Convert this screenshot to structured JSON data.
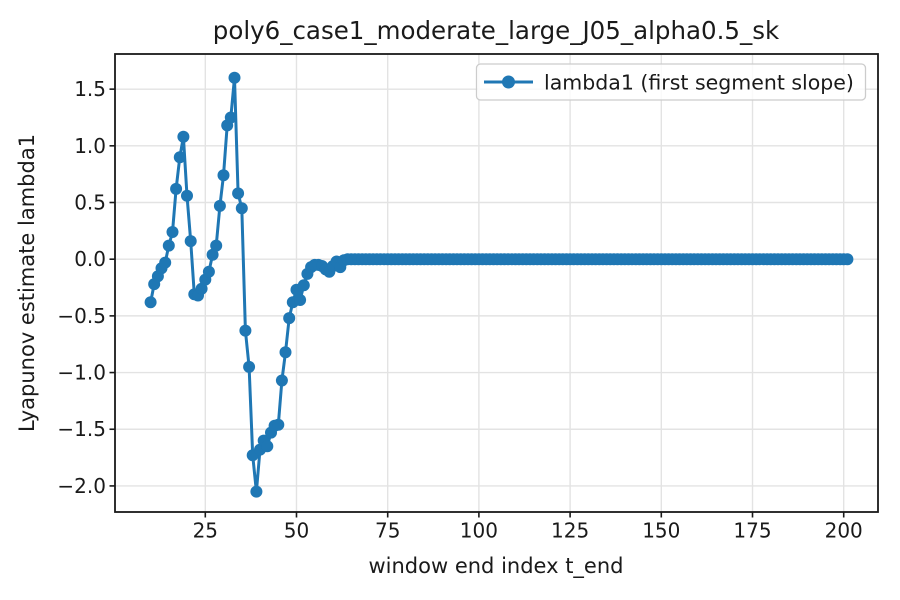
{
  "chart_data": {
    "type": "line",
    "title": "poly6_case1_moderate_large_J05_alpha0.5_sk",
    "xlabel": "window end index t_end",
    "ylabel": "Lyapunov estimate lambda1",
    "legend_label": "lambda1 (first segment slope)",
    "legend_position": "upper right",
    "grid": true,
    "series_color": "#1f77b4",
    "grid_color": "#e3e3e3",
    "spine_color": "#1a1a1a",
    "marker": "circle",
    "x_start": 10,
    "x_end": 201,
    "x_step": 1,
    "y": [
      -0.38,
      -0.22,
      -0.15,
      -0.08,
      -0.03,
      0.12,
      0.24,
      0.62,
      0.9,
      1.08,
      0.56,
      0.16,
      -0.31,
      -0.32,
      -0.26,
      -0.18,
      -0.11,
      0.04,
      0.12,
      0.47,
      0.74,
      1.18,
      1.25,
      1.6,
      0.58,
      0.45,
      -0.63,
      -0.95,
      -1.73,
      -2.05,
      -1.68,
      -1.6,
      -1.65,
      -1.53,
      -1.47,
      -1.46,
      -1.07,
      -0.82,
      -0.52,
      -0.38,
      -0.27,
      -0.36,
      -0.23,
      -0.13,
      -0.07,
      -0.05,
      -0.05,
      -0.06,
      -0.09,
      -0.11,
      -0.06,
      -0.02,
      -0.07,
      -0.01,
      0,
      0,
      0,
      0,
      0,
      0,
      0,
      0,
      0,
      0,
      0,
      0,
      0,
      0,
      0,
      0,
      0,
      0,
      0,
      0,
      0,
      0,
      0,
      0,
      0,
      0,
      0,
      0,
      0,
      0,
      0,
      0,
      0,
      0,
      0,
      0,
      0,
      0,
      0,
      0,
      0,
      0,
      0,
      0,
      0,
      0,
      0,
      0,
      0,
      0,
      0,
      0,
      0,
      0,
      0,
      0,
      0,
      0,
      0,
      0,
      0,
      0,
      0,
      0,
      0,
      0,
      0,
      0,
      0,
      0,
      0,
      0,
      0,
      0,
      0,
      0,
      0,
      0,
      0,
      0,
      0,
      0,
      0,
      0,
      0,
      0,
      0,
      0,
      0,
      0,
      0,
      0,
      0,
      0,
      0,
      0,
      0,
      0,
      0,
      0,
      0,
      0,
      0,
      0,
      0,
      0,
      0,
      0,
      0,
      0,
      0,
      0,
      0,
      0,
      0,
      0,
      0,
      0,
      0,
      0,
      0,
      0,
      0,
      0,
      0,
      0,
      0,
      0,
      0,
      0,
      0,
      0,
      0,
      0,
      0,
      0,
      0,
      0
    ],
    "xlim": [
      0.25,
      209.4
    ],
    "ylim": [
      -2.23,
      1.81
    ],
    "xtick_values": [
      25,
      50,
      75,
      100,
      125,
      150,
      175,
      200
    ],
    "xtick_labels": [
      "25",
      "50",
      "75",
      "100",
      "125",
      "150",
      "175",
      "200"
    ],
    "ytick_values": [
      1.5,
      1.0,
      0.5,
      0.0,
      -0.5,
      -1.0,
      -1.5,
      -2.0
    ],
    "ytick_labels": [
      "1.5",
      "1.0",
      "0.5",
      "0.0",
      "−0.5",
      "−1.0",
      "−1.5",
      "−2.0"
    ]
  }
}
